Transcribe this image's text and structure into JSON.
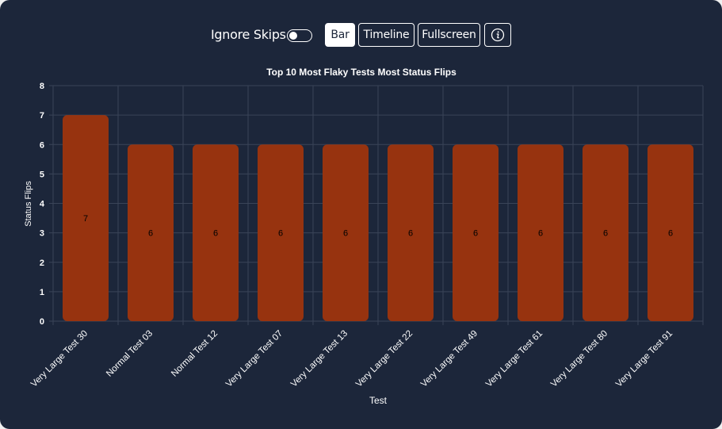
{
  "toolbar": {
    "ignore_skips_label": "Ignore Skips",
    "ignore_skips_on": false,
    "bar_label": "Bar",
    "timeline_label": "Timeline",
    "fullscreen_label": "Fullscreen",
    "info_icon": "info-circle-icon",
    "active_view": "Bar"
  },
  "colors": {
    "background": "#1c263a",
    "bar_fill": "#97330f",
    "grid": "#3a4458",
    "text": "#ffffff",
    "data_label": "#000000"
  },
  "chart_data": {
    "type": "bar",
    "title": "Top 10 Most Flaky Tests Most Status Flips",
    "xlabel": "Test",
    "ylabel": "Status Flips",
    "ylim": [
      0,
      8
    ],
    "yticks": [
      0,
      1,
      2,
      3,
      4,
      5,
      6,
      7,
      8
    ],
    "grid": true,
    "categories": [
      "Very Large Test 30",
      "Normal Test 03",
      "Normal Test 12",
      "Very Large Test 07",
      "Very Large Test 13",
      "Very Large Test 22",
      "Very Large Test 49",
      "Very Large Test 61",
      "Very Large Test 80",
      "Very Large Test 91"
    ],
    "values": [
      7,
      6,
      6,
      6,
      6,
      6,
      6,
      6,
      6,
      6
    ]
  }
}
